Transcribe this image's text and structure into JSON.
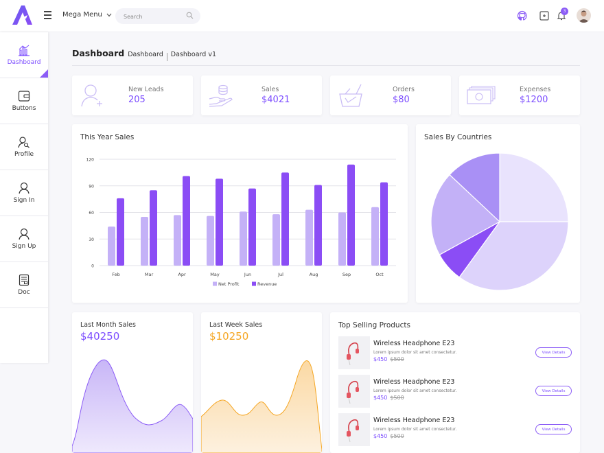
{
  "topbar": {
    "mega_menu_label": "Mega Menu",
    "search_placeholder": "Search",
    "notification_count": "3"
  },
  "sidebar": {
    "items": [
      {
        "label": "Dashboard",
        "icon": "chart-bars-icon",
        "active": true
      },
      {
        "label": "Buttons",
        "icon": "wallet-icon",
        "active": false
      },
      {
        "label": "Profile",
        "icon": "user-search-icon",
        "active": false
      },
      {
        "label": "Sign In",
        "icon": "user-icon",
        "active": false
      },
      {
        "label": "Sign Up",
        "icon": "user-icon",
        "active": false
      },
      {
        "label": "Doc",
        "icon": "document-icon",
        "active": false
      }
    ]
  },
  "breadcrumb": {
    "title": "Dashboard",
    "items": [
      "Dashboard",
      "Dashboard v1"
    ]
  },
  "stats": [
    {
      "label": "New Leads",
      "value": "205",
      "icon": "user-add-icon"
    },
    {
      "label": "Sales",
      "value": "$4021",
      "icon": "hand-coins-icon"
    },
    {
      "label": "Orders",
      "value": "$80",
      "icon": "basket-icon"
    },
    {
      "label": "Expenses",
      "value": "$1200",
      "icon": "cash-icon"
    }
  ],
  "year_sales": {
    "title": "This Year Sales",
    "chart_data": {
      "type": "bar",
      "categories": [
        "Feb",
        "Mar",
        "Apr",
        "May",
        "Jun",
        "Jul",
        "Aug",
        "Sep",
        "Oct"
      ],
      "series": [
        {
          "name": "Net Profit",
          "values": [
            44,
            55,
            57,
            56,
            61,
            58,
            63,
            60,
            66
          ],
          "color": "#c4b1f7"
        },
        {
          "name": "Revenue",
          "values": [
            76,
            85,
            101,
            98,
            87,
            105,
            91,
            114,
            94
          ],
          "color": "#8b4df5"
        }
      ],
      "ylim": [
        0,
        120
      ],
      "yticks": [
        0,
        30,
        60,
        90,
        120
      ],
      "grid": true,
      "legend": "bottom"
    }
  },
  "countries": {
    "title": "Sales By Countries",
    "chart_data": {
      "type": "pie",
      "values": [
        25,
        35,
        7,
        20,
        13
      ],
      "colors": [
        "#e9e3fd",
        "#ddd3fb",
        "#8b4df5",
        "#c3b1f7",
        "#a990f5"
      ]
    }
  },
  "last_month": {
    "title": "Last Month Sales",
    "value": "$40250",
    "color": "#7c4dff"
  },
  "last_week": {
    "title": "Last Week Sales",
    "value": "$10250",
    "color": "#f5a623"
  },
  "top_products": {
    "title": "Top Selling Products",
    "items": [
      {
        "name": "Wireless Headphone E23",
        "desc": "Lorem ipsum dolor sit amet consectetur.",
        "price": "$450",
        "old_price": "$500",
        "button": "View Details"
      },
      {
        "name": "Wireless Headphone E23",
        "desc": "Lorem ipsum dolor sit amet consectetur.",
        "price": "$450",
        "old_price": "$500",
        "button": "View Details"
      },
      {
        "name": "Wireless Headphone E23",
        "desc": "Lorem ipsum dolor sit amet consectetur.",
        "price": "$450",
        "old_price": "$500",
        "button": "View Details"
      }
    ]
  }
}
